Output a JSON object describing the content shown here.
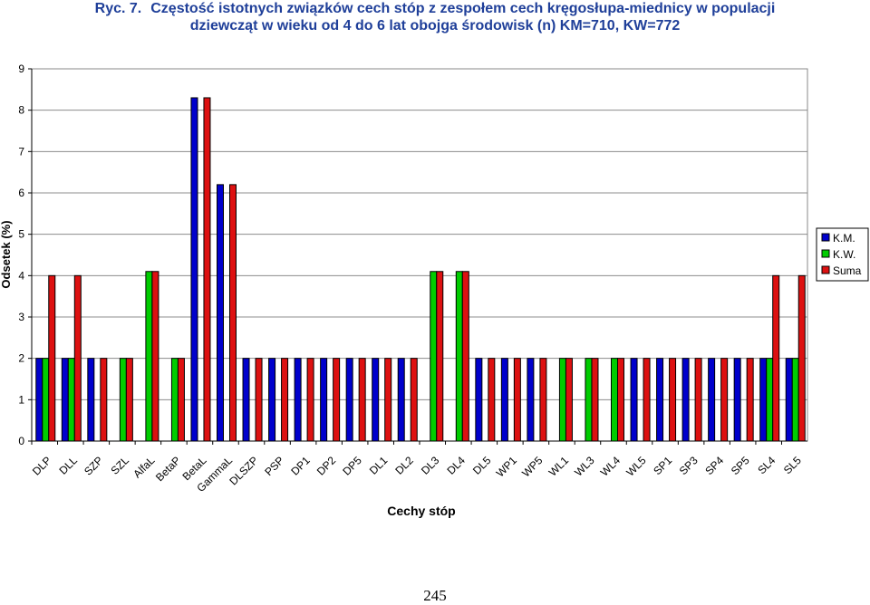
{
  "chart_data": {
    "type": "bar",
    "figure_label": "Ryc. 7.",
    "title_line1": "Częstość istotnych związków cech stóp z zespołem cech kręgosłupa-miednicy w populacji",
    "title_line2": "dziewcząt w wieku od 4 do 6 lat obojga środowisk  (n) KM=710, KW=772",
    "xlabel": "Cechy stóp",
    "ylabel": "Odsetek (%)",
    "ylim": [
      0,
      9
    ],
    "yticks": [
      0,
      1,
      2,
      3,
      4,
      5,
      6,
      7,
      8,
      9
    ],
    "grid": true,
    "legend_position": "right",
    "categories": [
      "DLP",
      "DLL",
      "SZP",
      "SZL",
      "AlfaL",
      "BetaP",
      "BetaL",
      "GammaL",
      "DLSZP",
      "PSP",
      "DP1",
      "DP2",
      "DP5",
      "DL1",
      "DL2",
      "DL3",
      "DL4",
      "DL5",
      "WP1",
      "WP5",
      "WL1",
      "WL3",
      "WL4",
      "WL5",
      "SP1",
      "SP3",
      "SP4",
      "SP5",
      "SL4",
      "SL5"
    ],
    "series": [
      {
        "name": "K.M.",
        "color": "#0000cc",
        "values": [
          2,
          2,
          2,
          0,
          0,
          0,
          8.3,
          6.2,
          2,
          2,
          2,
          2,
          2,
          2,
          2,
          0,
          0,
          2,
          2,
          2,
          0,
          0,
          0,
          2,
          2,
          2,
          2,
          2,
          2,
          2
        ]
      },
      {
        "name": "K.W.",
        "color": "#00cc00",
        "values": [
          2,
          2,
          0,
          2,
          4.1,
          2,
          0,
          0,
          0,
          0,
          0,
          0,
          0,
          0,
          0,
          4.1,
          4.1,
          0,
          0,
          0,
          2,
          2,
          2,
          0,
          0,
          0,
          0,
          0,
          2,
          2
        ]
      },
      {
        "name": "Suma",
        "color": "#dd1111",
        "values": [
          4,
          4,
          2,
          2,
          4.1,
          2,
          8.3,
          6.2,
          2,
          2,
          2,
          2,
          2,
          2,
          2,
          4.1,
          4.1,
          2,
          2,
          2,
          2,
          2,
          2,
          2,
          2,
          2,
          2,
          2,
          4,
          4
        ]
      }
    ]
  },
  "page": {
    "number": "245"
  }
}
